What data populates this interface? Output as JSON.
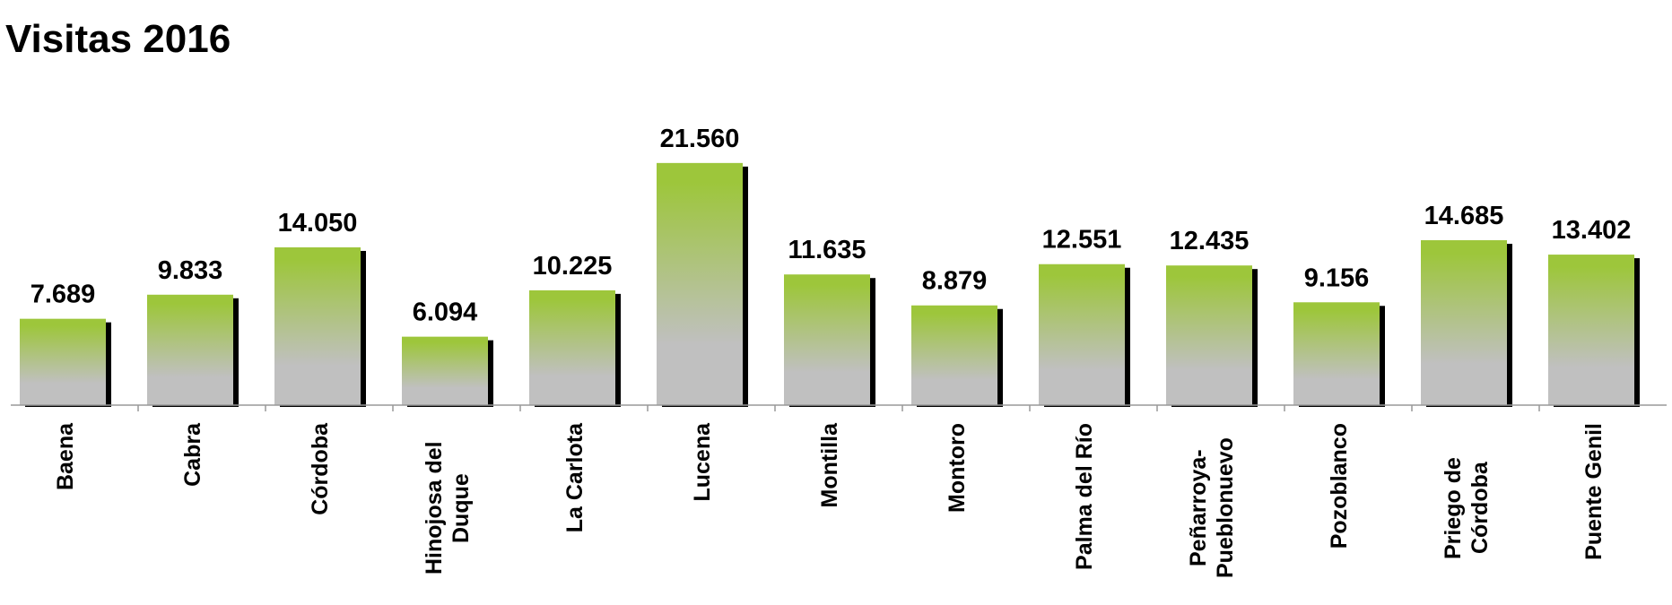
{
  "chart_data": {
    "type": "bar",
    "title": "Visitas 2016",
    "categories": [
      "Baena",
      "Cabra",
      "Córdoba",
      "Hinojosa del Duque",
      "La Carlota",
      "Lucena",
      "Montilla",
      "Montoro",
      "Palma del Río",
      "Peñarroya-Pueblonuevo",
      "Pozoblanco",
      "Priego de Córdoba",
      "Puente Genil"
    ],
    "values": [
      7689,
      9833,
      14050,
      6094,
      10225,
      21560,
      11635,
      8879,
      12551,
      12435,
      9156,
      14685,
      13402
    ],
    "value_labels": [
      "7.689",
      "9.833",
      "14.050",
      "6.094",
      "10.225",
      "21.560",
      "11.635",
      "8.879",
      "12.551",
      "12.435",
      "9.156",
      "14.685",
      "13.402"
    ],
    "color": "#9dc63b"
  }
}
